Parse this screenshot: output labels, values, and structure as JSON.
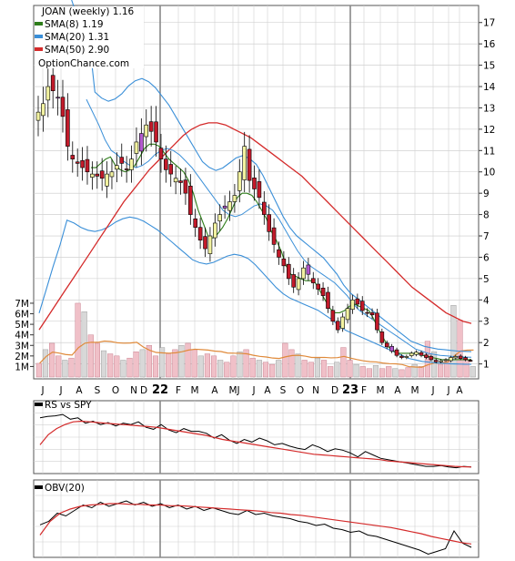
{
  "chart_data": [
    {
      "type": "candlestick",
      "title": "JOAN (weekly) 1.16",
      "watermark": "OptionChance.com",
      "legend": [
        {
          "label": "SMA(8) 1.19",
          "color": "#2e7d1a"
        },
        {
          "label": "SMA(20) 1.31",
          "color": "#3a8fd8"
        },
        {
          "label": "SMA(50) 2.90",
          "color": "#d42a2a"
        }
      ],
      "legend_position": "top-left",
      "y_ticks": [
        "17",
        "16",
        "15",
        "14",
        "13",
        "12",
        "11",
        "10",
        "9",
        "8",
        "7",
        "6",
        "5",
        "4",
        "3",
        "2",
        "1"
      ],
      "y_tick_values": [
        17,
        16,
        15,
        14,
        13,
        12,
        11,
        10,
        9,
        8,
        7,
        6,
        5,
        4,
        3,
        2,
        1
      ],
      "ylim": [
        0.3,
        17.8
      ],
      "grid": true,
      "x_ticks": [
        "J",
        "J",
        "A",
        "S",
        "O",
        "N",
        "D",
        "22",
        "F",
        "M",
        "A",
        "M",
        "J",
        "J",
        "A",
        "S",
        "O",
        "N",
        "D",
        "23",
        "F",
        "M",
        "A",
        "M",
        "J",
        "J",
        "A"
      ],
      "close_weekly": [
        12.8,
        13.2,
        14.0,
        13.8,
        13.5,
        12.6,
        11.2,
        10.6,
        10.4,
        10.2,
        10.0,
        9.9,
        9.8,
        9.7,
        9.9,
        10.0,
        10.3,
        10.4,
        10.1,
        10.6,
        11.4,
        11.8,
        12.2,
        11.9,
        11.4,
        10.6,
        10.1,
        9.9,
        9.7,
        9.5,
        9.0,
        8.0,
        7.4,
        6.8,
        6.4,
        7.0,
        7.6,
        8.0,
        8.4,
        8.6,
        8.9,
        10.0,
        11.2,
        9.6,
        9.2,
        8.8,
        8.0,
        7.2,
        6.6,
        6.0,
        5.6,
        5.0,
        4.6,
        5.0,
        5.5,
        5.2,
        4.8,
        4.5,
        4.2,
        3.6,
        3.0,
        2.6,
        3.2,
        3.6,
        4.0,
        3.8,
        3.5,
        3.4,
        3.3,
        2.6,
        2.0,
        1.8,
        1.6,
        1.4,
        1.3,
        1.35,
        1.5,
        1.55,
        1.4,
        1.3,
        1.2,
        1.1,
        1.15,
        1.2,
        1.3,
        1.35,
        1.25,
        1.2,
        1.16
      ],
      "sma8": [
        10.2,
        10.2,
        10.4,
        10.6,
        10.7,
        10.3,
        10.1,
        10.0,
        10.1,
        10.3,
        10.7,
        11.1,
        11.3,
        11.3,
        11.2,
        10.9,
        10.6,
        10.4,
        10.2,
        10.0,
        9.6,
        9.0,
        8.2,
        7.6,
        7.0,
        6.9,
        7.1,
        7.4,
        7.8,
        8.3,
        8.8,
        9.0,
        9.0,
        8.9,
        8.6,
        8.2,
        7.8,
        7.2,
        6.8,
        6.3,
        5.6,
        5.2,
        5.1,
        5.0,
        4.9,
        4.9,
        4.8,
        4.4,
        4.0,
        3.6,
        3.4,
        3.4,
        3.5,
        3.7,
        3.8,
        3.7,
        3.6,
        3.5,
        3.1,
        2.6,
        2.2,
        1.8,
        1.6,
        1.5,
        1.5,
        1.5,
        1.5,
        1.5,
        1.4,
        1.35,
        1.3,
        1.25,
        1.2,
        1.2,
        1.2,
        1.2,
        1.2,
        1.2,
        1.19
      ],
      "sma20": [
        13.4,
        12.8,
        12.2,
        11.5,
        11.0,
        10.8,
        10.5,
        10.3,
        10.2,
        10.3,
        10.5,
        10.8,
        11.0,
        11.1,
        11.0,
        10.8,
        10.5,
        10.2,
        9.8,
        9.4,
        9.0,
        8.6,
        8.2,
        8.0,
        7.9,
        8.0,
        8.2,
        8.4,
        8.5,
        8.4,
        8.2,
        7.8,
        7.3,
        6.8,
        6.3,
        5.9,
        5.6,
        5.4,
        5.2,
        5.0,
        4.8,
        4.5,
        4.2,
        3.8,
        3.5,
        3.3,
        3.1,
        2.9,
        2.7,
        2.5,
        2.3,
        2.1,
        1.9,
        1.7,
        1.6,
        1.5,
        1.45,
        1.4,
        1.38,
        1.35,
        1.33,
        1.32,
        1.31
      ],
      "sma50": [
        2.6,
        3.2,
        3.8,
        4.4,
        5.0,
        5.6,
        6.2,
        6.8,
        7.4,
        8.0,
        8.6,
        9.1,
        9.6,
        10.1,
        10.5,
        10.9,
        11.3,
        11.7,
        12.0,
        12.2,
        12.3,
        12.3,
        12.2,
        12.0,
        11.8,
        11.6,
        11.3,
        11.0,
        10.7,
        10.4,
        10.1,
        9.8,
        9.4,
        9.0,
        8.6,
        8.2,
        7.8,
        7.4,
        7.0,
        6.6,
        6.2,
        5.8,
        5.4,
        5.0,
        4.6,
        4.3,
        4.0,
        3.7,
        3.4,
        3.2,
        3.0,
        2.9
      ],
      "volume_axis_ticks": [
        "7M",
        "6M",
        "5M",
        "4M",
        "3M",
        "2M",
        "1M"
      ],
      "volume_axis_values": [
        7000000,
        6000000,
        5000000,
        4000000,
        3000000,
        2000000,
        1000000
      ],
      "volume_weekly_m": [
        1.3,
        2.6,
        3.2,
        2.0,
        1.6,
        1.8,
        7.0,
        6.2,
        4.0,
        3.2,
        2.5,
        2.2,
        2.0,
        1.6,
        1.8,
        2.4,
        2.6,
        3.0,
        2.0,
        2.8,
        2.2,
        2.6,
        3.0,
        3.2,
        2.6,
        2.0,
        2.2,
        2.0,
        1.6,
        1.4,
        2.0,
        2.4,
        2.6,
        1.8,
        1.6,
        1.4,
        1.2,
        1.6,
        3.2,
        2.6,
        2.2,
        1.6,
        1.4,
        1.8,
        1.6,
        1.0,
        1.4,
        2.8,
        1.6,
        1.2,
        1.0,
        0.8,
        1.1,
        0.8,
        1.0,
        0.8,
        0.7,
        0.9,
        1.2,
        1.0,
        3.4,
        2.4,
        1.2,
        1.6,
        6.8,
        5.4,
        1.6,
        1.0
      ]
    },
    {
      "type": "line",
      "title": "RS vs SPY",
      "legend_position": "top-left",
      "grid": true,
      "x_ticks": [
        "J",
        "J",
        "A",
        "S",
        "O",
        "N",
        "D",
        "22",
        "F",
        "M",
        "A",
        "M",
        "J",
        "J",
        "A",
        "S",
        "O",
        "N",
        "D",
        "23",
        "F",
        "M",
        "A",
        "M",
        "J",
        "J",
        "A"
      ],
      "rs": [
        0.8,
        0.82,
        0.83,
        0.85,
        0.78,
        0.8,
        0.72,
        0.75,
        0.7,
        0.73,
        0.68,
        0.72,
        0.7,
        0.74,
        0.66,
        0.63,
        0.7,
        0.62,
        0.58,
        0.64,
        0.6,
        0.6,
        0.57,
        0.5,
        0.55,
        0.47,
        0.42,
        0.48,
        0.44,
        0.5,
        0.46,
        0.4,
        0.42,
        0.38,
        0.35,
        0.33,
        0.4,
        0.36,
        0.3,
        0.34,
        0.32,
        0.28,
        0.22,
        0.3,
        0.25,
        0.2,
        0.18,
        0.16,
        0.14,
        0.12,
        0.1,
        0.08,
        0.08,
        0.09,
        0.07,
        0.06,
        0.08,
        0.07
      ],
      "rs_ma": [
        0.4,
        0.55,
        0.64,
        0.7,
        0.74,
        0.75,
        0.74,
        0.73,
        0.72,
        0.71,
        0.7,
        0.69,
        0.68,
        0.67,
        0.66,
        0.64,
        0.62,
        0.6,
        0.58,
        0.56,
        0.54,
        0.51,
        0.48,
        0.46,
        0.44,
        0.42,
        0.4,
        0.38,
        0.36,
        0.34,
        0.32,
        0.3,
        0.28,
        0.26,
        0.25,
        0.24,
        0.23,
        0.22,
        0.21,
        0.2,
        0.19,
        0.18,
        0.16,
        0.15,
        0.14,
        0.13,
        0.12,
        0.11,
        0.1,
        0.09,
        0.08,
        0.075,
        0.07
      ]
    },
    {
      "type": "line",
      "title": "OBV(20)",
      "legend_position": "top-left",
      "grid": true,
      "x_ticks": [
        "J",
        "J",
        "A",
        "S",
        "O",
        "N",
        "D",
        "22",
        "F",
        "M",
        "A",
        "M",
        "J",
        "J",
        "A",
        "S",
        "O",
        "N",
        "D",
        "23",
        "F",
        "M",
        "A",
        "M",
        "J",
        "J",
        "A"
      ],
      "obv": [
        0.45,
        0.5,
        0.62,
        0.58,
        0.66,
        0.74,
        0.7,
        0.78,
        0.72,
        0.76,
        0.8,
        0.74,
        0.78,
        0.72,
        0.76,
        0.7,
        0.74,
        0.68,
        0.72,
        0.66,
        0.7,
        0.66,
        0.62,
        0.6,
        0.66,
        0.6,
        0.62,
        0.58,
        0.56,
        0.54,
        0.5,
        0.48,
        0.44,
        0.46,
        0.4,
        0.38,
        0.34,
        0.36,
        0.3,
        0.28,
        0.24,
        0.2,
        0.16,
        0.12,
        0.08,
        0.02,
        0.06,
        0.1,
        0.36,
        0.18,
        0.12
      ],
      "obv_ma": [
        0.3,
        0.5,
        0.62,
        0.68,
        0.72,
        0.74,
        0.75,
        0.76,
        0.76,
        0.75,
        0.75,
        0.74,
        0.74,
        0.73,
        0.73,
        0.72,
        0.71,
        0.7,
        0.69,
        0.68,
        0.67,
        0.66,
        0.65,
        0.63,
        0.62,
        0.6,
        0.59,
        0.57,
        0.55,
        0.53,
        0.51,
        0.49,
        0.47,
        0.45,
        0.43,
        0.41,
        0.38,
        0.35,
        0.32,
        0.28,
        0.25,
        0.22,
        0.19,
        0.17
      ]
    }
  ],
  "colors": {
    "up_body": "#f2f2a0",
    "down_body": "#c21a2a",
    "purple_body": "#b45ad0",
    "volume_up": "#f0c0c8",
    "volume_down": "#d8d8d8",
    "volume_ma": "#e08a3a",
    "obv_line": "#000000",
    "ma_line": "#d42a2a"
  }
}
